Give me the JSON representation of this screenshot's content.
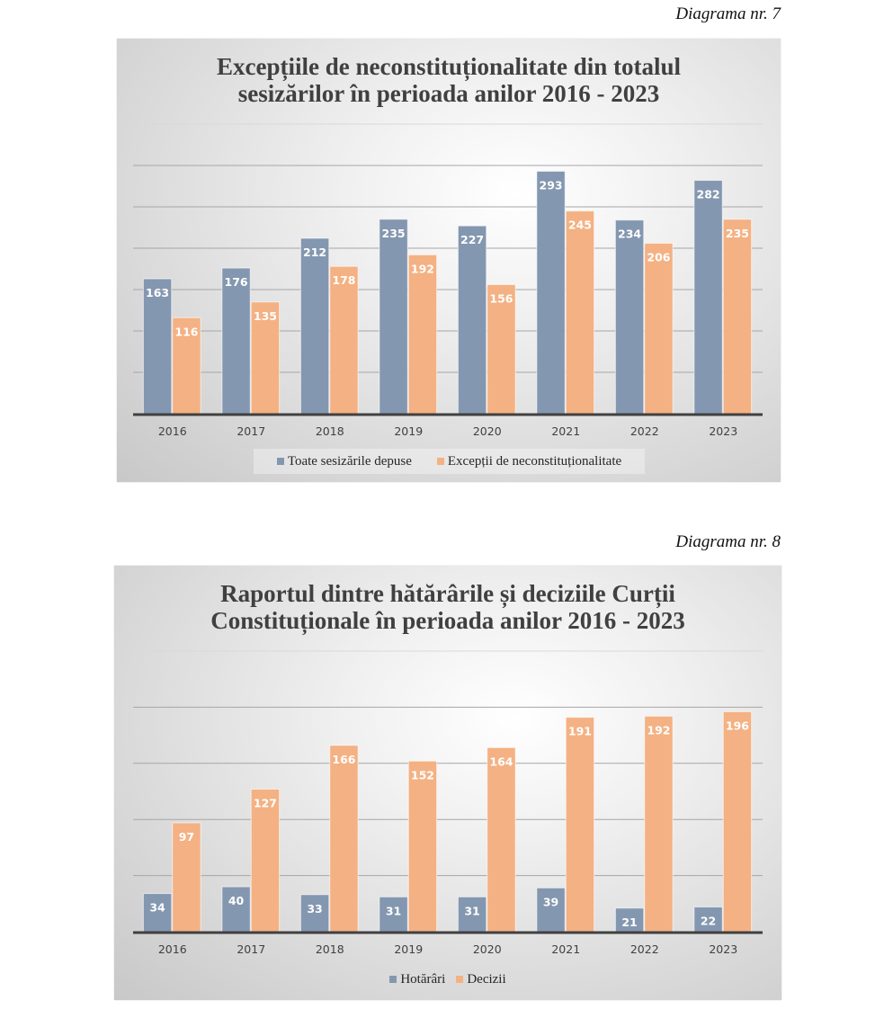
{
  "page": {
    "captions": [
      "Diagrama nr. 7",
      "Diagrama nr. 8"
    ]
  },
  "colors": {
    "series_blue": "#8497b0",
    "series_orange": "#f4b183",
    "gridline": "#a6a6a6",
    "axis": "#404040"
  },
  "chart_data": [
    {
      "type": "bar",
      "title": "Excepțiile de neconstituționalitate din totalul sesizărilor în perioada anilor 2016 - 2023",
      "title_lines": [
        "Excepțiile de neconstituționalitate din totalul",
        "sesizărilor în perioada anilor 2016 - 2023"
      ],
      "categories": [
        "2016",
        "2017",
        "2018",
        "2019",
        "2020",
        "2021",
        "2022",
        "2023"
      ],
      "series": [
        {
          "name": "Toate sesizările depuse",
          "color": "#8497b0",
          "values": [
            163,
            176,
            212,
            235,
            227,
            293,
            234,
            282
          ]
        },
        {
          "name": "Excepții de neconstituționalitate",
          "color": "#f4b183",
          "values": [
            116,
            135,
            178,
            192,
            156,
            245,
            206,
            235
          ]
        }
      ],
      "xlabel": "",
      "ylabel": "",
      "ylim": [
        0,
        350
      ],
      "ytick_step": 50,
      "y_tick_labels_shown": false,
      "grid": true,
      "data_labels": "inside-end",
      "legend": "bottom"
    },
    {
      "type": "bar",
      "title": "Raportul dintre hătărârile și deciziile Curții Constituționale în perioada anilor 2016 - 2023",
      "title_lines": [
        "Raportul dintre hătărârile și deciziile Curții",
        "Constituționale în perioada anilor 2016 - 2023"
      ],
      "categories": [
        "2016",
        "2017",
        "2018",
        "2019",
        "2020",
        "2021",
        "2022",
        "2023"
      ],
      "series": [
        {
          "name": "Hotărâri",
          "color": "#8497b0",
          "values": [
            34,
            40,
            33,
            31,
            31,
            39,
            21,
            22
          ]
        },
        {
          "name": "Decizii",
          "color": "#f4b183",
          "values": [
            97,
            127,
            166,
            152,
            164,
            191,
            192,
            196
          ]
        }
      ],
      "xlabel": "",
      "ylabel": "",
      "ylim": [
        0,
        250
      ],
      "ytick_step": 50,
      "y_tick_labels_shown": false,
      "grid": true,
      "data_labels": "inside-end",
      "legend": "bottom"
    }
  ]
}
